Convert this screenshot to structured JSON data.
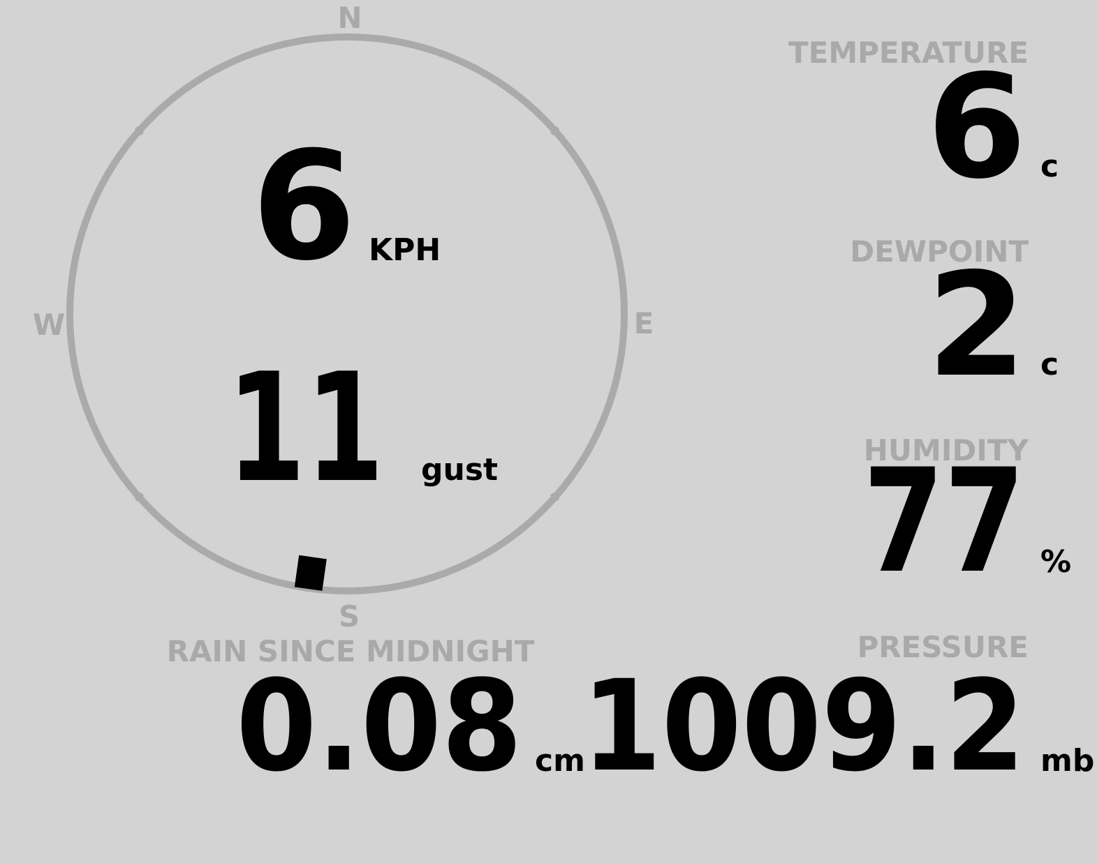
{
  "compass": {
    "north": "N",
    "east": "E",
    "south": "S",
    "west": "W"
  },
  "wind": {
    "speed": 6,
    "speed_unit": "KPH",
    "gust": 11,
    "gust_label": "gust",
    "direction_deg": 188
  },
  "temperature": {
    "label": "TEMPERATURE",
    "value": 6,
    "unit": "c"
  },
  "dewpoint": {
    "label": "DEWPOINT",
    "value": 2,
    "unit": "c"
  },
  "humidity": {
    "label": "HUMIDITY",
    "value": 77,
    "unit": "%"
  },
  "pressure": {
    "label": "PRESSURE",
    "value": 1009.2,
    "unit": "mb"
  },
  "rain": {
    "label": "RAIN SINCE MIDNIGHT",
    "value": 0.08,
    "unit": "cm"
  }
}
